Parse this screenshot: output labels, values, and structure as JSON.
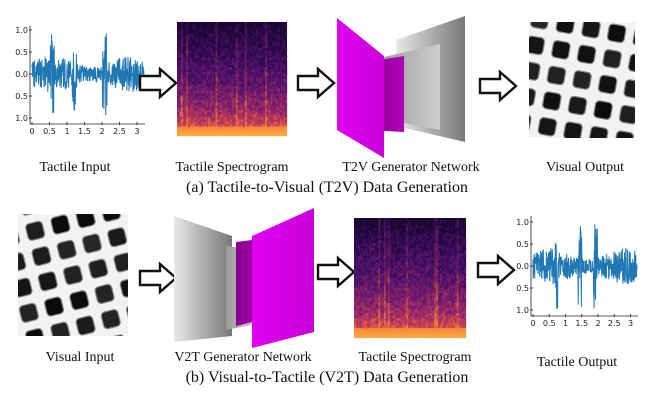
{
  "row_a": {
    "caption": "(a) Tactile-to-Visual (T2V) Data Generation",
    "labels": {
      "tactile_input": "Tactile Input",
      "tactile_spectrogram": "Tactile Spectrogram",
      "generator": "T2V Generator Network",
      "visual_output": "Visual Output"
    },
    "plot": {
      "x_ticks": [
        "0",
        "0.5",
        "1",
        "1.5",
        "2",
        "2.5",
        "3"
      ],
      "y_ticks": [
        "1.0",
        "0.5",
        "0.0",
        "0.5",
        "1.0"
      ],
      "xlim": [
        0,
        3.2
      ],
      "ylim": [
        -1.0,
        1.0
      ]
    }
  },
  "row_b": {
    "caption": "(b) Visual-to-Tactile (V2T) Data Generation",
    "labels": {
      "visual_input": "Visual Input",
      "generator": "V2T Generator Network",
      "tactile_spectrogram": "Tactile Spectrogram",
      "tactile_output": "Tactile Output"
    },
    "plot": {
      "x_ticks": [
        "0",
        "0.5",
        "1",
        "1.5",
        "2",
        "2.5",
        "3"
      ],
      "y_ticks": [
        "1.0",
        "0.5",
        "0.0",
        "0.5",
        "1.0"
      ],
      "xlim": [
        0,
        3.2
      ],
      "ylim": [
        -1.0,
        1.0
      ]
    }
  },
  "colors": {
    "signal": "#1f77b4",
    "magenta": "#dd00ee",
    "arrow_fill": "#ffffff",
    "arrow_stroke": "#111111"
  }
}
